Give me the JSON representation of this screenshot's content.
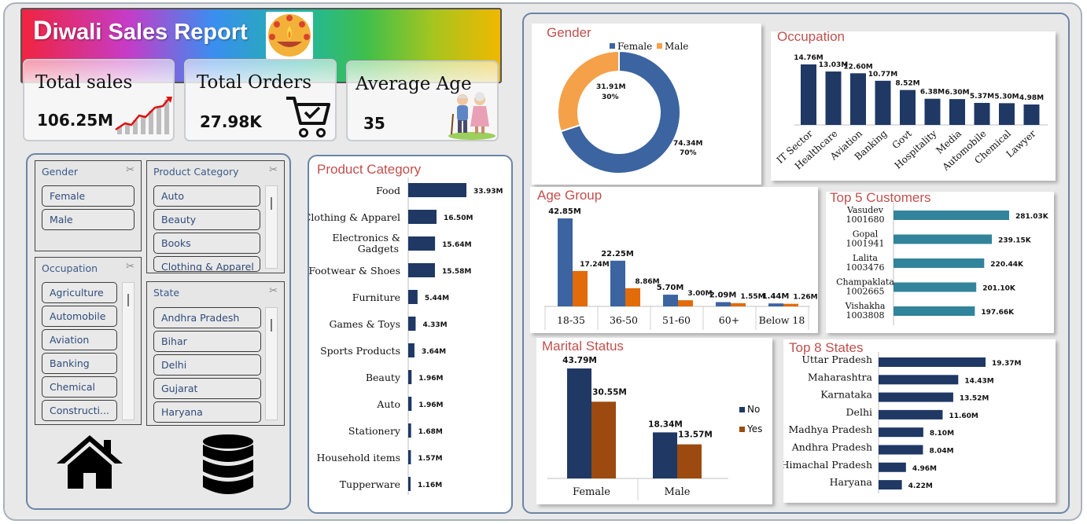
{
  "header": {
    "title_first": "D",
    "title_rest": "iwali Sales Report"
  },
  "kpis": [
    {
      "title": "Total sales",
      "value": "106.25M",
      "icon": "growth-chart-icon"
    },
    {
      "title": "Total Orders",
      "value": "27.98K",
      "icon": "shopping-cart-icon"
    },
    {
      "title": "Average Age",
      "value": "35",
      "icon": "elderly-couple-icon"
    }
  ],
  "slicers": {
    "gender": {
      "title": "Gender",
      "items": [
        "Female",
        "Male"
      ]
    },
    "product_category": {
      "title": "Product Category",
      "items": [
        "Auto",
        "Beauty",
        "Books",
        "Clothing & Apparel"
      ]
    },
    "occupation": {
      "title": "Occupation",
      "items": [
        "Agriculture",
        "Automobile",
        "Aviation",
        "Banking",
        "Chemical",
        "Constructi..."
      ]
    },
    "state": {
      "title": "State",
      "items": [
        "Andhra Pradesh",
        "Bihar",
        "Delhi",
        "Gujarat",
        "Haryana"
      ]
    }
  },
  "nav": {
    "home_icon": "home-icon",
    "data_icon": "database-icon"
  },
  "colors": {
    "navy": "#1f3864",
    "blue": "#3b64a0",
    "orange": "#f4a14a",
    "dark_orange": "#e26b0a",
    "teal": "#31849b",
    "brown": "#9c4a0f",
    "title_red": "#c0504d"
  },
  "chart_data": [
    {
      "id": "gender",
      "type": "pie",
      "title": "Gender",
      "legend_position": "top",
      "series": [
        {
          "name": "Female",
          "value": 74.34,
          "label": "74.34M",
          "pct": "70%",
          "color": "#3b64a0"
        },
        {
          "name": "Male",
          "value": 31.91,
          "label": "31.91M",
          "pct": "30%",
          "color": "#f4a14a"
        }
      ]
    },
    {
      "id": "occupation",
      "type": "bar",
      "title": "Occupation",
      "categories": [
        "IT Sector",
        "Healthcare",
        "Aviation",
        "Banking",
        "Govt",
        "Hospitality",
        "Media",
        "Automobile",
        "Chemical",
        "Lawyer"
      ],
      "values": [
        14.76,
        13.03,
        12.6,
        10.77,
        8.52,
        6.38,
        6.3,
        5.37,
        5.3,
        4.98
      ],
      "labels": [
        "14.76M",
        "13.03M",
        "12.60M",
        "10.77M",
        "8.52M",
        "6.38M",
        "6.30M",
        "5.37M",
        "5.30M",
        "4.98M"
      ],
      "ylim": [
        0,
        14.76
      ]
    },
    {
      "id": "product_category",
      "type": "bar",
      "orientation": "horizontal",
      "title": "Product Category",
      "categories": [
        "Food",
        "Clothing & Apparel",
        "Electronics & Gadgets",
        "Footwear & Shoes",
        "Furniture",
        "Games & Toys",
        "Sports Products",
        "Beauty",
        "Auto",
        "Stationery",
        "Household items",
        "Tupperware"
      ],
      "values": [
        33.93,
        16.5,
        15.64,
        15.58,
        5.44,
        4.33,
        3.64,
        1.96,
        1.96,
        1.68,
        1.57,
        1.16
      ],
      "labels": [
        "33.93M",
        "16.50M",
        "15.64M",
        "15.58M",
        "5.44M",
        "4.33M",
        "3.64M",
        "1.96M",
        "1.96M",
        "1.68M",
        "1.57M",
        "1.16M"
      ]
    },
    {
      "id": "age_group",
      "type": "bar",
      "title": "Age Group",
      "categories": [
        "18-35",
        "36-50",
        "51-60",
        "60+",
        "Below 18"
      ],
      "series": [
        {
          "values": [
            42.85,
            22.25,
            5.7,
            2.09,
            1.44
          ],
          "labels": [
            "42.85M",
            "22.25M",
            "5.70M",
            "2.09M",
            "1.44M"
          ],
          "color": "#3b64a0"
        },
        {
          "values": [
            17.24,
            8.86,
            3.0,
            1.55,
            1.26
          ],
          "labels": [
            "17.24M",
            "8.86M",
            "3.00M",
            "1.55M",
            "1.26M"
          ],
          "color": "#e26b0a"
        }
      ]
    },
    {
      "id": "top_customers",
      "type": "bar",
      "orientation": "horizontal",
      "title": "Top 5 Customers",
      "categories": [
        [
          "Vasudev",
          "1001680"
        ],
        [
          "Gopal",
          "1001941"
        ],
        [
          "Lalita",
          "1003476"
        ],
        [
          "Champaklata",
          "1002665"
        ],
        [
          "Vishakha",
          "1003808"
        ]
      ],
      "values": [
        281.03,
        239.15,
        220.44,
        201.1,
        197.66
      ],
      "labels": [
        "281.03K",
        "239.15K",
        "220.44K",
        "201.10K",
        "197.66K"
      ]
    },
    {
      "id": "marital_status",
      "type": "bar",
      "title": "Marital Status",
      "categories": [
        "Female",
        "Male"
      ],
      "legend_position": "right",
      "series": [
        {
          "name": "No",
          "values": [
            43.79,
            18.34
          ],
          "labels": [
            "43.79M",
            "18.34M"
          ],
          "color": "#1f3864"
        },
        {
          "name": "Yes",
          "values": [
            30.55,
            13.57
          ],
          "labels": [
            "30.55M",
            "13.57M"
          ],
          "color": "#9c4a0f"
        }
      ]
    },
    {
      "id": "top_states",
      "type": "bar",
      "orientation": "horizontal",
      "title": "Top 8 States",
      "categories": [
        "Uttar Pradesh",
        "Maharashtra",
        "Karnataka",
        "Delhi",
        "Madhya Pradesh",
        "Andhra Pradesh",
        "Himachal Pradesh",
        "Haryana"
      ],
      "values": [
        19.37,
        14.43,
        13.52,
        11.6,
        8.1,
        8.04,
        4.96,
        4.22
      ],
      "labels": [
        "19.37M",
        "14.43M",
        "13.52M",
        "11.60M",
        "8.10M",
        "8.04M",
        "4.96M",
        "4.22M"
      ]
    }
  ]
}
